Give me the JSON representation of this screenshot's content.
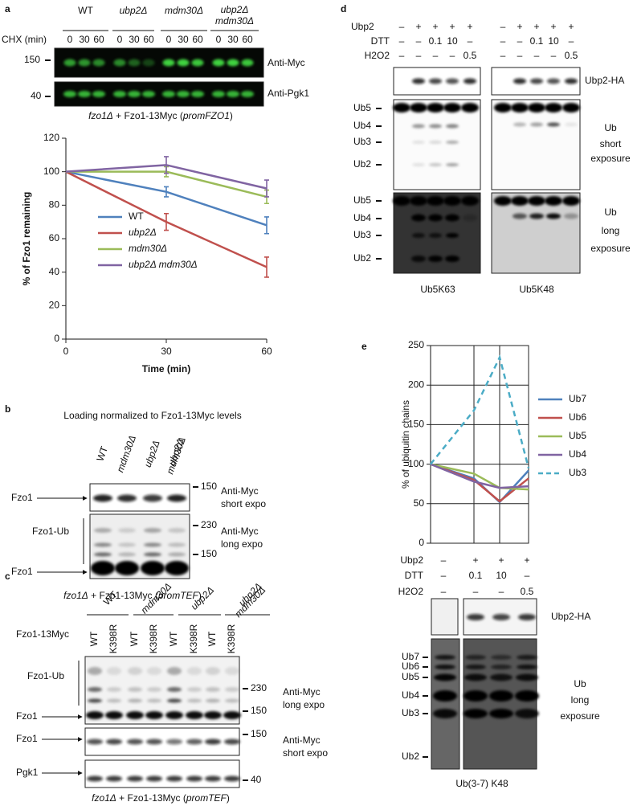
{
  "panels": {
    "a": {
      "label": "a",
      "genotypes": [
        "WT",
        "ubp2Δ",
        "mdm30Δ",
        [
          "ubp2Δ",
          "mdm30Δ"
        ]
      ],
      "chx_label": "CHX (min)",
      "times": [
        "0",
        "30",
        "60",
        "0",
        "30",
        "60",
        "0",
        "30",
        "60",
        "0",
        "30",
        "60"
      ],
      "markers": [
        "150",
        "40"
      ],
      "antibodies": [
        "Anti-Myc",
        "Anti-Pgk1"
      ],
      "caption": [
        "fzo1Δ",
        " + Fzo1-13Myc (",
        "promFZO1",
        ")"
      ]
    },
    "b": {
      "label": "b",
      "title": "Loading normalized to Fzo1-13Myc levels",
      "lanes": [
        "WT",
        "mdm30Δ",
        "ubp2Δ",
        [
          "ubp2Δ",
          "mdm30Δ"
        ]
      ],
      "band_labels": [
        "Fzo1",
        "Fzo1-Ub",
        "Fzo1"
      ],
      "markers": [
        "150",
        "230",
        "150"
      ],
      "antibodies": [
        [
          "Anti-Myc",
          "short expo"
        ],
        [
          "Anti-Myc",
          "long expo"
        ]
      ],
      "caption": [
        "fzo1Δ",
        " + Fzo1-13Myc (",
        "promTEF",
        ")"
      ]
    },
    "c": {
      "label": "c",
      "genotypes": [
        "WT",
        "mdm30Δ",
        "ubp2Δ",
        [
          "ubp2Δ",
          "mdm30Δ"
        ]
      ],
      "row_label": "Fzo1-13Myc",
      "lanes": [
        "WT",
        "K398R",
        "WT",
        "K398R",
        "WT",
        "K398R",
        "WT",
        "K398R"
      ],
      "band_labels": [
        "Fzo1-Ub",
        "Fzo1",
        "Fzo1",
        "Pgk1"
      ],
      "markers": [
        "230",
        "150",
        "150",
        "40"
      ],
      "antibodies": [
        [
          "Anti-Myc",
          "long expo"
        ],
        [
          "Anti-Myc",
          "short expo"
        ]
      ],
      "caption": [
        "fzo1Δ",
        " + Fzo1-13Myc (",
        "promTEF",
        ")"
      ]
    },
    "d": {
      "label": "d",
      "rows": [
        {
          "label": "Ubp2",
          "signs": [
            "–",
            "+",
            "+",
            "+",
            "+",
            "–",
            "+",
            "+",
            "+",
            "+"
          ]
        },
        {
          "label": "DTT",
          "signs": [
            "–",
            "–",
            "0.1",
            "10",
            "–",
            "–",
            "–",
            "0.1",
            "10",
            "–"
          ]
        },
        {
          "label": "H2O2",
          "signs": [
            "–",
            "–",
            "–",
            "–",
            "0.5",
            "–",
            "–",
            "–",
            "–",
            "0.5"
          ]
        }
      ],
      "ha_label": "Ubp2-HA",
      "short_ladder": [
        "Ub5",
        "Ub4",
        "Ub3",
        "Ub2"
      ],
      "short_label": [
        "Ub",
        "short",
        "exposure"
      ],
      "long_ladder": [
        "Ub5",
        "Ub4",
        "Ub3",
        "Ub2"
      ],
      "long_label": [
        "Ub",
        "long",
        "exposure"
      ],
      "substrates": [
        "Ub5K63",
        "Ub5K48"
      ]
    },
    "e": {
      "label": "e",
      "rows": [
        {
          "label": "Ubp2",
          "signs": [
            "–",
            "+",
            "+",
            "+"
          ]
        },
        {
          "label": "DTT",
          "signs": [
            "–",
            "0.1",
            "10",
            "–"
          ]
        },
        {
          "label": "H2O2",
          "signs": [
            "–",
            "–",
            "–",
            "0.5"
          ]
        }
      ],
      "ha_label": "Ubp2-HA",
      "ladder": [
        "Ub7",
        "Ub6",
        "Ub5",
        "Ub4",
        "Ub3",
        "Ub2"
      ],
      "exposure_label": [
        "Ub",
        "long",
        "exposure"
      ],
      "substrate": "Ub(3-7) K48"
    }
  },
  "chart_data": [
    {
      "type": "line",
      "xlabel": "Time (min)",
      "ylabel": "% of Fzo1 remaining",
      "x": [
        0,
        30,
        60
      ],
      "xlim": [
        0,
        60
      ],
      "xticks": [
        0,
        30,
        60
      ],
      "ylim": [
        0,
        120
      ],
      "yticks": [
        0,
        20,
        40,
        60,
        80,
        100,
        120
      ],
      "grid": false,
      "series": [
        {
          "name": "WT",
          "color": "#4f81bd",
          "values": [
            100,
            88,
            68
          ],
          "errors": [
            null,
            3,
            5
          ]
        },
        {
          "name": "ubp2Δ",
          "color": "#c0504d",
          "values": [
            100,
            70,
            43
          ],
          "errors": [
            null,
            5,
            6
          ]
        },
        {
          "name": "mdm30Δ",
          "color": "#9bbb59",
          "values": [
            100,
            100,
            85
          ],
          "errors": [
            null,
            3,
            4
          ]
        },
        {
          "name": "ubp2Δ mdm30Δ",
          "color": "#8064a2",
          "values": [
            100,
            104,
            90
          ],
          "errors": [
            null,
            5,
            5
          ]
        }
      ]
    },
    {
      "type": "line",
      "ylabel": "% of ubiquitin chains",
      "categories": [
        null,
        null,
        null,
        null
      ],
      "ylim": [
        0,
        250
      ],
      "yticks": [
        0,
        50,
        100,
        150,
        200,
        250
      ],
      "grid": true,
      "series": [
        {
          "name": "Ub7",
          "color": "#4f81bd",
          "values": [
            100,
            82,
            52,
            92
          ]
        },
        {
          "name": "Ub6",
          "color": "#c0504d",
          "values": [
            100,
            80,
            53,
            82
          ]
        },
        {
          "name": "Ub5",
          "color": "#9bbb59",
          "values": [
            100,
            88,
            70,
            68
          ]
        },
        {
          "name": "Ub4",
          "color": "#8064a2",
          "values": [
            100,
            78,
            70,
            72
          ]
        },
        {
          "name": "Ub3",
          "color": "#4bacc6",
          "values": [
            100,
            168,
            235,
            95
          ],
          "dashed": true
        }
      ]
    }
  ]
}
